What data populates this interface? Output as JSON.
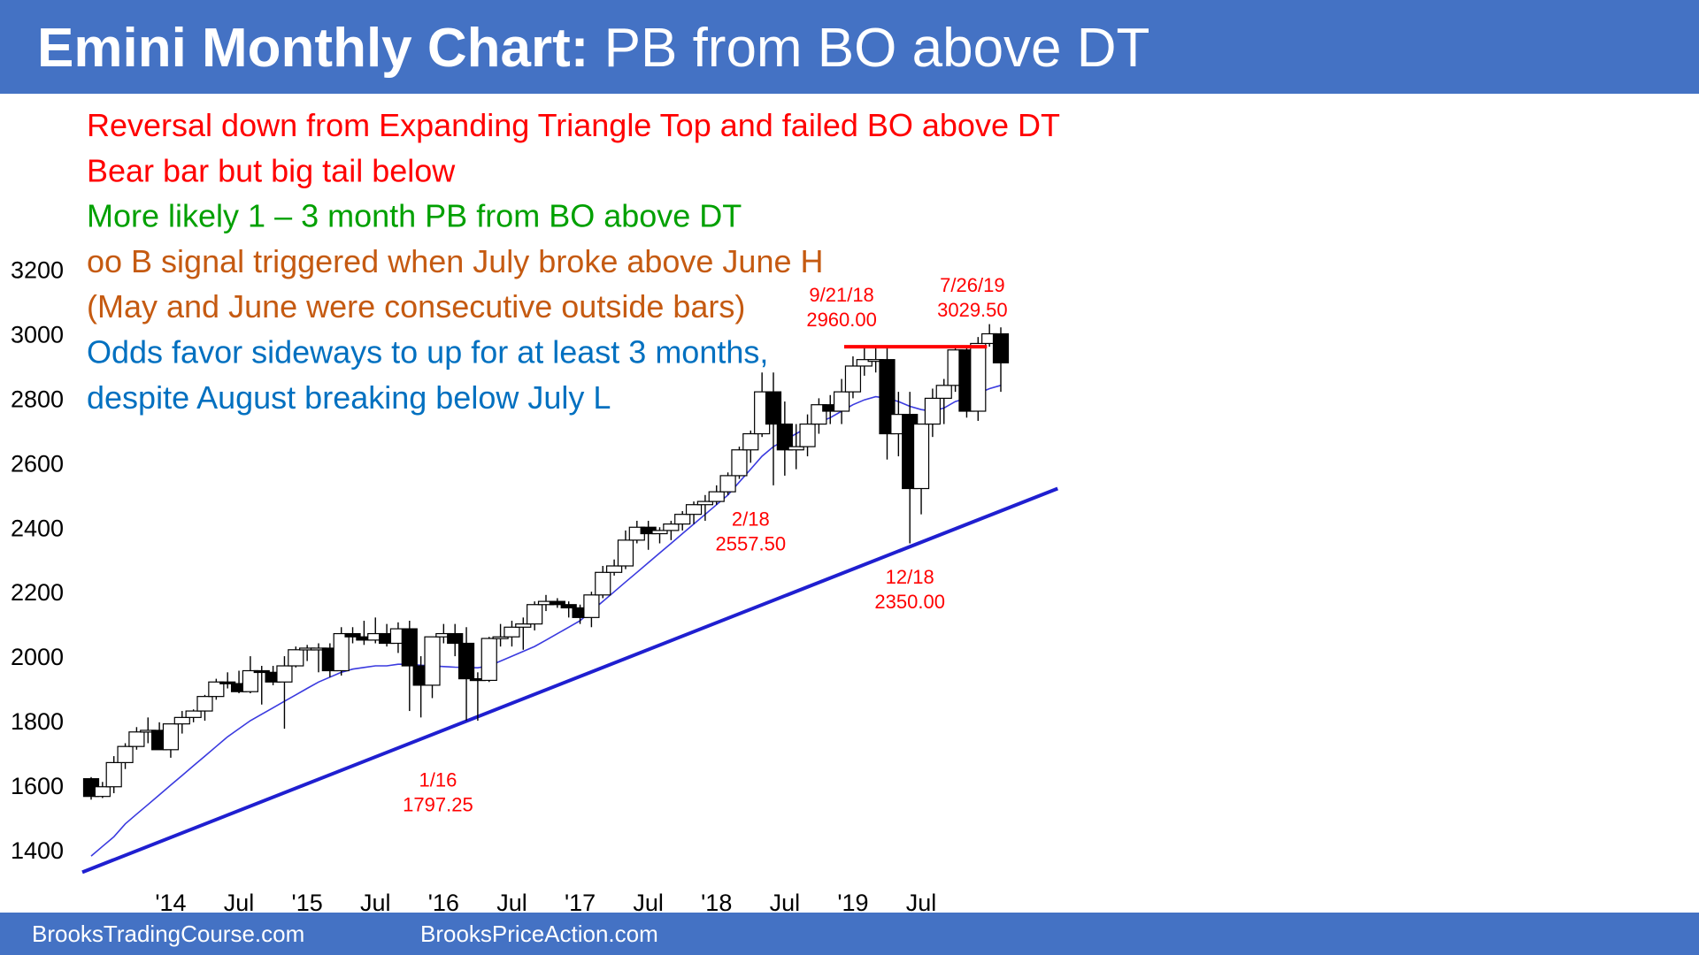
{
  "header": {
    "title_bold": "Emini Monthly Chart:",
    "title_rest": " PB from BO above DT"
  },
  "footer": {
    "left": "BrooksTradingCourse.com",
    "right": "BrooksPriceAction.com"
  },
  "colors": {
    "banner": "#4472c4",
    "red_note": "#ff0000",
    "green_note": "#00a000",
    "orange_note": "#c55a11",
    "blue_note": "#0070c0",
    "moving_average": "#3a3adf",
    "trend_line": "#1f1fd0",
    "resistance_line": "#ff0000"
  },
  "notes": [
    {
      "text": "Reversal down from Expanding Triangle Top and failed BO above DT",
      "color": "#ff0000"
    },
    {
      "text": "Bear bar but big tail below",
      "color": "#ff0000"
    },
    {
      "text": "More likely 1 – 3 month PB from BO above DT",
      "color": "#00a000"
    },
    {
      "text": "oo B signal triggered when July broke above June H",
      "color": "#c55a11"
    },
    {
      "text": "(May and June were consecutive outside bars)",
      "color": "#c55a11"
    },
    {
      "text": "Odds favor sideways to up for at least 3 months,",
      "color": "#0070c0"
    },
    {
      "text": "despite August breaking below July L",
      "color": "#0070c0"
    }
  ],
  "chart_data": {
    "type": "candlestick",
    "timeframe": "monthly",
    "ylim": [
      1320,
      3240
    ],
    "y_ticks": [
      1400,
      1600,
      1800,
      2000,
      2200,
      2400,
      2600,
      2800,
      3000,
      3200
    ],
    "x_ticks": [
      {
        "label": "'14",
        "index": 7
      },
      {
        "label": "Jul",
        "index": 13
      },
      {
        "label": "'15",
        "index": 19
      },
      {
        "label": "Jul",
        "index": 25
      },
      {
        "label": "'16",
        "index": 31
      },
      {
        "label": "Jul",
        "index": 37
      },
      {
        "label": "'17",
        "index": 43
      },
      {
        "label": "Jul",
        "index": 49
      },
      {
        "label": "'18",
        "index": 55
      },
      {
        "label": "Jul",
        "index": 61
      },
      {
        "label": "'19",
        "index": 67
      },
      {
        "label": "Jul",
        "index": 73
      }
    ],
    "bars_start": "2013-06",
    "ohlc": [
      [
        1620,
        1625,
        1555,
        1565
      ],
      [
        1565,
        1610,
        1560,
        1595
      ],
      [
        1595,
        1690,
        1575,
        1670
      ],
      [
        1670,
        1730,
        1650,
        1720
      ],
      [
        1720,
        1780,
        1710,
        1765
      ],
      [
        1765,
        1810,
        1730,
        1770
      ],
      [
        1770,
        1795,
        1710,
        1710
      ],
      [
        1710,
        1790,
        1685,
        1790
      ],
      [
        1790,
        1830,
        1760,
        1810
      ],
      [
        1810,
        1835,
        1795,
        1830
      ],
      [
        1830,
        1880,
        1800,
        1875
      ],
      [
        1875,
        1930,
        1865,
        1920
      ],
      [
        1920,
        1950,
        1900,
        1915
      ],
      [
        1915,
        1955,
        1885,
        1890
      ],
      [
        1890,
        2000,
        1885,
        1955
      ],
      [
        1955,
        1970,
        1850,
        1950
      ],
      [
        1950,
        1970,
        1910,
        1920
      ],
      [
        1920,
        2000,
        1775,
        1970
      ],
      [
        1970,
        2030,
        1965,
        2020
      ],
      [
        2020,
        2035,
        1985,
        2025
      ],
      [
        2025,
        2040,
        1950,
        2025
      ],
      [
        2025,
        2040,
        1935,
        1955
      ],
      [
        1955,
        2090,
        1940,
        2070
      ],
      [
        2070,
        2090,
        2040,
        2060
      ],
      [
        2060,
        2110,
        2035,
        2050
      ],
      [
        2050,
        2120,
        2040,
        2070
      ],
      [
        2070,
        2100,
        2030,
        2040
      ],
      [
        2040,
        2105,
        2010,
        2085
      ],
      [
        2085,
        2110,
        1830,
        1970
      ],
      [
        1970,
        2000,
        1810,
        1910
      ],
      [
        1910,
        2060,
        1870,
        2060
      ],
      [
        2060,
        2100,
        2040,
        2070
      ],
      [
        2070,
        2100,
        2000,
        2040
      ],
      [
        2040,
        2090,
        1800,
        1930
      ],
      [
        1930,
        1950,
        1800,
        1925
      ],
      [
        1925,
        2060,
        1920,
        2055
      ],
      [
        2055,
        2100,
        2030,
        2060
      ],
      [
        2060,
        2110,
        2030,
        2090
      ],
      [
        2090,
        2120,
        2020,
        2100
      ],
      [
        2100,
        2170,
        2080,
        2160
      ],
      [
        2160,
        2190,
        2140,
        2170
      ],
      [
        2170,
        2180,
        2150,
        2160
      ],
      [
        2160,
        2170,
        2120,
        2150
      ],
      [
        2150,
        2160,
        2100,
        2120
      ],
      [
        2120,
        2200,
        2090,
        2190
      ],
      [
        2190,
        2280,
        2180,
        2260
      ],
      [
        2260,
        2300,
        2250,
        2280
      ],
      [
        2280,
        2390,
        2270,
        2360
      ],
      [
        2360,
        2420,
        2350,
        2400
      ],
      [
        2400,
        2420,
        2330,
        2380
      ],
      [
        2380,
        2400,
        2350,
        2390
      ],
      [
        2390,
        2420,
        2360,
        2410
      ],
      [
        2410,
        2450,
        2390,
        2440
      ],
      [
        2440,
        2480,
        2410,
        2470
      ],
      [
        2470,
        2500,
        2420,
        2480
      ],
      [
        2480,
        2530,
        2470,
        2510
      ],
      [
        2510,
        2570,
        2500,
        2560
      ],
      [
        2560,
        2650,
        2550,
        2640
      ],
      [
        2640,
        2700,
        2600,
        2690
      ],
      [
        2690,
        2880,
        2680,
        2820
      ],
      [
        2820,
        2880,
        2530,
        2720
      ],
      [
        2720,
        2790,
        2560,
        2640
      ],
      [
        2640,
        2720,
        2580,
        2650
      ],
      [
        2650,
        2750,
        2620,
        2720
      ],
      [
        2720,
        2800,
        2690,
        2780
      ],
      [
        2780,
        2810,
        2720,
        2760
      ],
      [
        2760,
        2860,
        2720,
        2820
      ],
      [
        2820,
        2930,
        2800,
        2900
      ],
      [
        2900,
        2960,
        2870,
        2920
      ],
      [
        2920,
        2960,
        2880,
        2920
      ],
      [
        2920,
        2960,
        2610,
        2690
      ],
      [
        2690,
        2820,
        2620,
        2750
      ],
      [
        2750,
        2820,
        2350,
        2520
      ],
      [
        2520,
        2720,
        2440,
        2720
      ],
      [
        2720,
        2830,
        2680,
        2800
      ],
      [
        2800,
        2860,
        2720,
        2840
      ],
      [
        2840,
        2960,
        2820,
        2950
      ],
      [
        2950,
        2960,
        2740,
        2760
      ],
      [
        2760,
        2990,
        2730,
        2970
      ],
      [
        2970,
        3030,
        2960,
        3000
      ],
      [
        3000,
        3020,
        2820,
        2910
      ]
    ],
    "x_axis_labels": [
      "'14",
      "Jul",
      "'15",
      "Jul",
      "'16",
      "Jul",
      "'17",
      "Jul",
      "'18",
      "Jul",
      "'19",
      "Jul"
    ],
    "series": [
      {
        "name": "",
        "type": "moving_average",
        "values": [
          1380,
          1410,
          1440,
          1480,
          1510,
          1540,
          1570,
          1600,
          1630,
          1660,
          1690,
          1720,
          1750,
          1775,
          1800,
          1820,
          1840,
          1860,
          1880,
          1900,
          1920,
          1935,
          1950,
          1960,
          1965,
          1970,
          1970,
          1975,
          1975,
          1972,
          1970,
          1968,
          1966,
          1965,
          1964,
          1970,
          1985,
          2000,
          2015,
          2030,
          2050,
          2070,
          2090,
          2110,
          2140,
          2170,
          2200,
          2230,
          2260,
          2290,
          2320,
          2350,
          2380,
          2410,
          2440,
          2470,
          2500,
          2540,
          2580,
          2620,
          2650,
          2670,
          2690,
          2710,
          2725,
          2740,
          2760,
          2780,
          2795,
          2805,
          2800,
          2790,
          2775,
          2765,
          2760,
          2770,
          2790,
          2800,
          2815,
          2830,
          2840
        ]
      },
      {
        "name": "",
        "type": "trend_line",
        "from": {
          "index": 0,
          "value": 1330
        },
        "to": {
          "index": 85,
          "value": 2520
        }
      },
      {
        "name": "",
        "type": "resistance_line",
        "from": {
          "index": 67,
          "value": 2960
        },
        "to": {
          "index": 78,
          "value": 2960
        }
      }
    ],
    "annotations": [
      {
        "text": [
          "9/21/18",
          "2960.00"
        ],
        "index": 66,
        "value": 3100
      },
      {
        "text": [
          "7/26/19",
          "3029.50"
        ],
        "index": 77.5,
        "value": 3130
      },
      {
        "text": [
          "2/18",
          "2557.50"
        ],
        "index": 58,
        "value": 2405
      },
      {
        "text": [
          "12/18",
          "2350.00"
        ],
        "index": 72,
        "value": 2225
      },
      {
        "text": [
          "1/16",
          "1797.25"
        ],
        "index": 30.5,
        "value": 1595
      }
    ],
    "grid": false,
    "legend": "none"
  }
}
